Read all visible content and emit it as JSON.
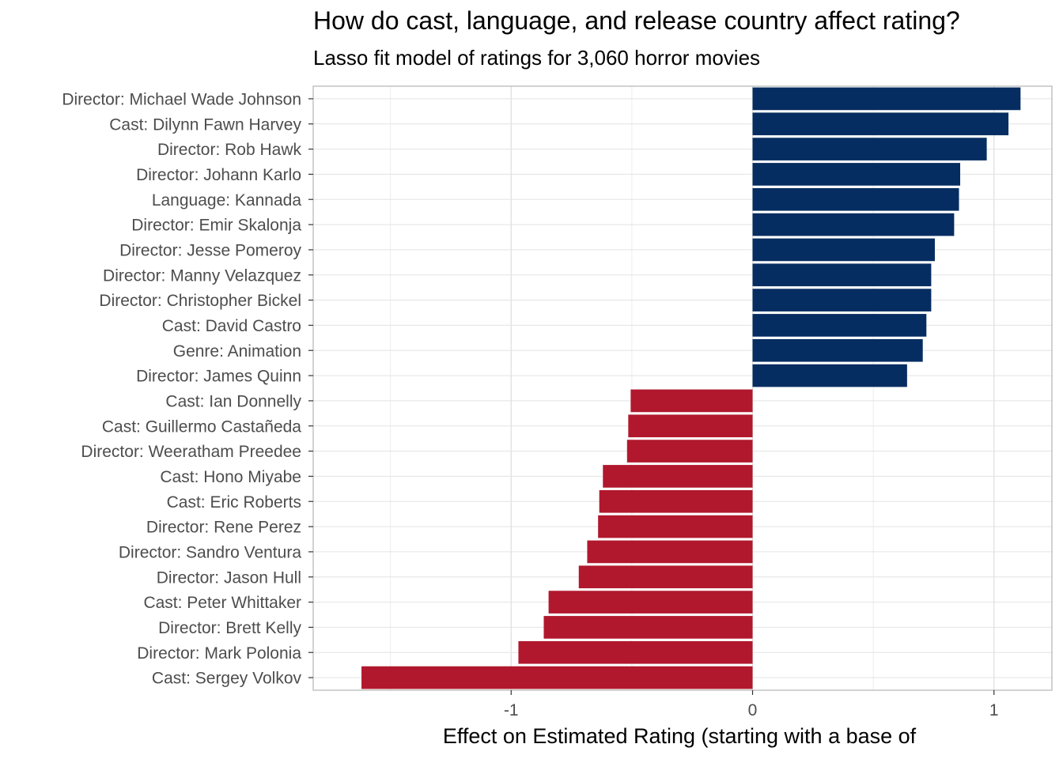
{
  "chart_data": {
    "type": "bar",
    "orientation": "horizontal",
    "title": "How do cast, language, and release country affect rating?",
    "subtitle": "Lasso fit model of ratings for 3,060 horror movies",
    "xlabel": "Effect on Estimated Rating (starting with a base of",
    "ylabel": "",
    "xlim": [
      -1.82,
      1.24
    ],
    "x_ticks": [
      -1,
      0,
      1
    ],
    "x_tick_labels": [
      "-1",
      "0",
      "1"
    ],
    "grid": true,
    "legend": "none",
    "colors": {
      "positive": "#062D61",
      "negative": "#B1182D"
    },
    "categories": [
      "Director: Michael Wade Johnson",
      "Cast: Dilynn Fawn Harvey",
      "Director: Rob Hawk",
      "Director: Johann Karlo",
      "Language: Kannada",
      "Director: Emir Skalonja",
      "Director: Jesse Pomeroy",
      "Director: Manny Velazquez",
      "Director: Christopher Bickel",
      "Cast: David Castro",
      "Genre: Animation",
      "Director: James Quinn",
      "Cast: Ian Donnelly",
      "Cast: Guillermo Castañeda",
      "Director: Weeratham Preedee",
      "Cast: Hono Miyabe",
      "Cast: Eric Roberts",
      "Director: Rene Perez",
      "Director: Sandro Ventura",
      "Director: Jason Hull",
      "Cast: Peter Whittaker",
      "Director: Brett Kelly",
      "Director: Mark Polonia",
      "Cast: Sergey Volkov"
    ],
    "values": [
      1.11,
      1.06,
      0.97,
      0.86,
      0.855,
      0.835,
      0.755,
      0.74,
      0.74,
      0.72,
      0.705,
      0.64,
      -0.505,
      -0.515,
      -0.52,
      -0.62,
      -0.635,
      -0.64,
      -0.685,
      -0.72,
      -0.845,
      -0.865,
      -0.97,
      -1.62
    ]
  }
}
